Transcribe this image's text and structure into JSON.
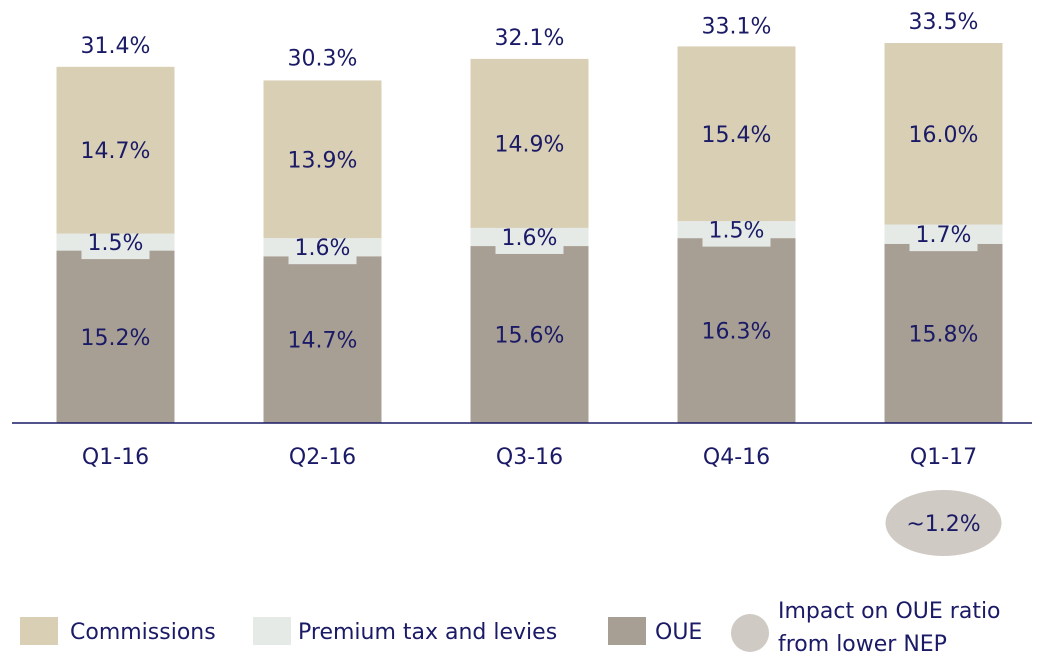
{
  "chart_data": {
    "type": "stacked_bar",
    "categories": [
      "Q1-16",
      "Q2-16",
      "Q3-16",
      "Q4-16",
      "Q1-17"
    ],
    "series": [
      {
        "name": "OUE",
        "color": "#a89f94",
        "values": [
          15.2,
          14.7,
          15.6,
          16.3,
          15.8
        ],
        "value_labels": [
          "15.2%",
          "14.7%",
          "15.6%",
          "16.3%",
          "15.8%"
        ]
      },
      {
        "name": "Premium tax and levies",
        "color": "#e6eae7",
        "values": [
          1.5,
          1.6,
          1.6,
          1.5,
          1.7
        ],
        "value_labels": [
          "1.5%",
          "1.6%",
          "1.6%",
          "1.5%",
          "1.7%"
        ]
      },
      {
        "name": "Commissions",
        "color": "#d8cfb5",
        "values": [
          14.7,
          13.9,
          14.9,
          15.4,
          16.0
        ],
        "value_labels": [
          "14.7%",
          "13.9%",
          "14.9%",
          "15.4%",
          "16.0%"
        ]
      }
    ],
    "totals": [
      31.4,
      30.3,
      32.1,
      33.1,
      33.5
    ],
    "total_labels": [
      "31.4%",
      "30.3%",
      "32.1%",
      "33.1%",
      "33.5%"
    ],
    "ylim": [
      0,
      35
    ],
    "annotation": {
      "value": 1.2,
      "label": "~1.2%",
      "color": "#cfcac4",
      "legend": [
        "Impact on OUE ratio",
        "from lower NEP"
      ]
    }
  }
}
